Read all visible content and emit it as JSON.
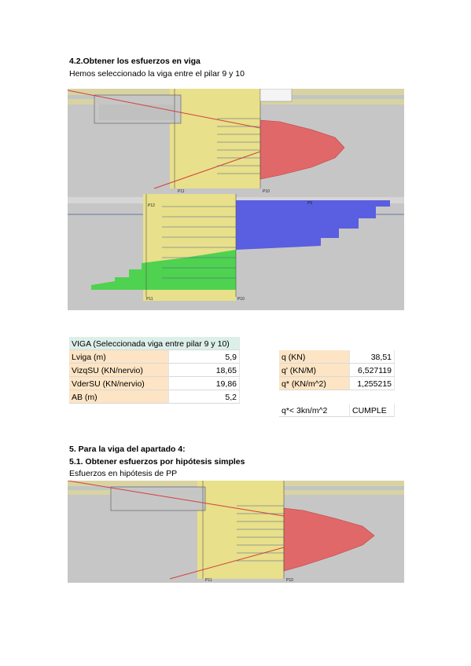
{
  "section_4_2": {
    "title": "4.2.Obtener los esfuerzos en viga",
    "text": "Hemos seleccionado la viga entre el pilar 9 y 10"
  },
  "figure_1": {
    "labels": [
      "P11",
      "P10",
      "P12",
      "P9",
      "P11",
      "P10"
    ]
  },
  "table": {
    "title": "VIGA (Seleccionada viga entre pilar 9 y 10)",
    "rows": [
      [
        "Lviga (m)",
        "5,9",
        "q (KN)",
        "38,51"
      ],
      [
        "VizqSU (KN/nervio)",
        "18,65",
        "q' (KN/M)",
        "6,527119"
      ],
      [
        "VderSU (KN/nervio)",
        "19,86",
        "q* (KN/m^2)",
        "1,255215"
      ],
      [
        "AB (m)",
        "5,2"
      ]
    ],
    "check": [
      "q*< 3kn/m^2",
      "CUMPLE"
    ]
  },
  "section_5": {
    "title": "5. Para la viga del apartado 4:",
    "subtitle": "5.1. Obtener esfuerzos por hipótesis simples",
    "text": "Esfuerzos en hipótesis de PP"
  },
  "figure_2": {
    "labels": [
      "P11",
      "P10"
    ]
  }
}
